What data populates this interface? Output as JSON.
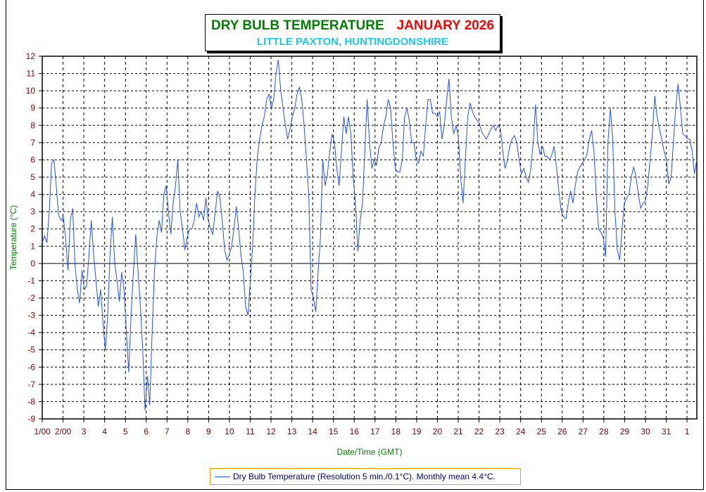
{
  "title": {
    "main": "DRY BULB TEMPERATURE",
    "month": "JANUARY 2026",
    "location": "LITTLE PAXTON, HUNTINGDONSHIRE"
  },
  "colors": {
    "line": "#2050ff",
    "title_main": "#008000",
    "title_month": "#ff0000",
    "location": "#1ec8f0",
    "tick_labels": "#800000",
    "axis_titles": "#008000",
    "legend_border": "#ff9900"
  },
  "chart_data": {
    "type": "line",
    "title": "DRY BULB TEMPERATURE JANUARY 2026",
    "xlabel": "Date/Time (GMT)",
    "ylabel": "Temperature (°C)",
    "ylim": [
      -9,
      12
    ],
    "yticks": [
      "12",
      "11",
      "10",
      "9",
      "8",
      "7",
      "6",
      "5",
      "4",
      "3",
      "2",
      "1",
      "0",
      "-1",
      "-2",
      "-3",
      "-4",
      "-5",
      "-6",
      "-7",
      "-8",
      "-9"
    ],
    "xticks": [
      "1/00",
      "2/00",
      "3",
      "4",
      "5",
      "6",
      "7",
      "8",
      "9",
      "10",
      "11",
      "12",
      "13",
      "14",
      "15",
      "16",
      "17",
      "18",
      "19",
      "20",
      "21",
      "22",
      "23",
      "24",
      "25",
      "26",
      "27",
      "28",
      "29",
      "30",
      "31",
      "1"
    ],
    "xlim_days": [
      0,
      31.47
    ],
    "grid": true,
    "legend": "Dry Bulb Temperature (Resolution 5 min./0.1°C). Monthly mean 4.4°C.",
    "legend_position": "bottom-center",
    "series": [
      {
        "name": "Dry Bulb Temperature",
        "start_day": 0,
        "end_day": 31.47,
        "values": [
          1.2,
          1.6,
          1.2,
          3,
          5.8,
          6,
          4.5,
          2.8,
          2.5,
          2.7,
          1.5,
          -0.4,
          2.5,
          3.2,
          0,
          -1.5,
          -2.3,
          -0.4,
          -1.5,
          -1.3,
          0.5,
          2.5,
          0.5,
          -1,
          -2.5,
          -1.5,
          -3.5,
          -5,
          -3,
          0.5,
          2.7,
          0,
          -1,
          -2.2,
          -0.5,
          -1.5,
          -4,
          -6.3,
          -3,
          -0.5,
          1.7,
          -0.5,
          -2.5,
          -5,
          -8.5,
          -6.5,
          -8.2,
          -4,
          -0.5,
          1.5,
          2.5,
          1.8,
          4,
          4.5,
          3,
          1.7,
          3.5,
          4.5,
          6,
          3,
          2,
          0.8,
          1.5,
          2,
          2,
          2.5,
          3.5,
          2.7,
          3,
          2.5,
          3.8,
          2.5,
          2,
          1.7,
          3,
          4.2,
          3.8,
          2.5,
          0.8,
          0.2,
          0.5,
          1,
          2,
          3.3,
          2,
          0.5,
          -0.5,
          -2.5,
          -3,
          -1,
          1,
          4,
          6.2,
          7.2,
          8,
          8.5,
          9.5,
          9.8,
          9,
          9.5,
          11,
          11.8,
          10,
          9,
          8,
          7.2,
          7.8,
          8.5,
          9,
          9.8,
          10.2,
          9.5,
          8,
          6,
          4,
          -1.5,
          -2,
          -2.8,
          -0.5,
          1.5,
          6,
          4.5,
          5.2,
          6.5,
          7.5,
          7,
          5.5,
          4.5,
          6.5,
          8.5,
          7.5,
          8.5,
          7.5,
          5,
          3.5,
          0.7,
          2.5,
          3.5,
          6.5,
          9.5,
          7,
          5.5,
          6,
          5.7,
          6.7,
          7,
          8,
          8.5,
          9.5,
          9,
          7,
          5.5,
          5.3,
          5.3,
          6,
          8.5,
          9,
          8.3,
          7,
          7,
          6,
          5.8,
          6.5,
          6.2,
          8,
          9.5,
          9.5,
          8.7,
          8.7,
          8.5,
          8.8,
          7.2,
          8,
          9.5,
          10.7,
          8.5,
          7.5,
          8,
          7.3,
          5,
          3.5,
          6,
          8.5,
          9.3,
          8.8,
          8.5,
          8.3,
          8.1,
          7.6,
          7.4,
          7.2,
          7.5,
          7.8,
          8,
          7.7,
          8,
          7.8,
          6.5,
          5.5,
          6,
          6.8,
          7.2,
          7.4,
          7,
          6,
          5.2,
          5.5,
          5,
          4.7,
          5.5,
          7,
          9.2,
          7,
          6.3,
          6.8,
          6.2,
          6.2,
          6,
          6.3,
          6.8,
          5.5,
          4.2,
          3,
          2.7,
          2.6,
          3.5,
          4.2,
          3.5,
          4.5,
          5.3,
          5.6,
          5.8,
          6,
          6.3,
          7.2,
          7.7,
          6.5,
          4,
          2,
          1.8,
          1.5,
          0.4,
          7,
          9,
          7.2,
          3,
          0.8,
          0.2,
          2,
          3.5,
          3.8,
          4,
          5,
          5.6,
          5,
          4,
          3.2,
          3.5,
          3.6,
          4.5,
          6,
          7.5,
          9.7,
          8.5,
          7.8,
          7.2,
          6.5,
          6,
          4.6,
          5,
          7,
          9,
          10.4,
          9,
          7.5,
          7.4,
          7.2,
          7.2,
          6.5,
          5.2,
          6
        ]
      }
    ]
  }
}
